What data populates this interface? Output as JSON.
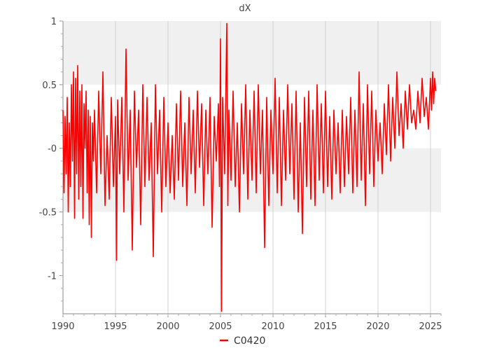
{
  "chart_data": {
    "type": "line",
    "title": "dX",
    "xlabel": "",
    "ylabel": "",
    "x_range": [
      1990,
      2026
    ],
    "ylim": [
      -1.3,
      1.0
    ],
    "x_ticks": [
      {
        "value": 1990,
        "label": "1990"
      },
      {
        "value": 1995,
        "label": "1995"
      },
      {
        "value": 2000,
        "label": "2000"
      },
      {
        "value": 2005,
        "label": "2005"
      },
      {
        "value": 2010,
        "label": "2010"
      },
      {
        "value": 2015,
        "label": "2015"
      },
      {
        "value": 2020,
        "label": "2020"
      },
      {
        "value": 2025,
        "label": "2025"
      }
    ],
    "y_ticks": [
      {
        "value": 1,
        "label": "1"
      },
      {
        "value": 0.5,
        "label": "0.5"
      },
      {
        "value": 0,
        "label": "-0"
      },
      {
        "value": -0.5,
        "label": "-0.5"
      },
      {
        "value": -1,
        "label": "-1"
      }
    ],
    "bands": [
      [
        0.5,
        1.0
      ],
      [
        -0.5,
        0.0
      ]
    ],
    "band_color": "#f0f0f0",
    "grid": true,
    "legend_position": "bottom-center",
    "series": [
      {
        "name": "C0420",
        "color": "#ff0000",
        "x": [
          1990.0,
          1990.1,
          1990.2,
          1990.3,
          1990.4,
          1990.5,
          1990.6,
          1990.7,
          1990.8,
          1990.9,
          1991.0,
          1991.1,
          1991.2,
          1991.3,
          1991.4,
          1991.5,
          1991.6,
          1991.7,
          1991.8,
          1991.9,
          1992.0,
          1992.1,
          1992.2,
          1992.3,
          1992.4,
          1992.5,
          1992.6,
          1992.7,
          1992.8,
          1992.9,
          1993.0,
          1993.2,
          1993.4,
          1993.6,
          1993.8,
          1994.0,
          1994.2,
          1994.4,
          1994.6,
          1994.8,
          1995.0,
          1995.1,
          1995.2,
          1995.4,
          1995.6,
          1995.8,
          1996.0,
          1996.2,
          1996.4,
          1996.6,
          1996.8,
          1997.0,
          1997.2,
          1997.4,
          1997.6,
          1997.8,
          1998.0,
          1998.2,
          1998.4,
          1998.6,
          1998.8,
          1999.0,
          1999.2,
          1999.4,
          1999.6,
          1999.8,
          2000.0,
          2000.2,
          2000.4,
          2000.6,
          2000.8,
          2001.0,
          2001.2,
          2001.4,
          2001.6,
          2001.8,
          2002.0,
          2002.2,
          2002.4,
          2002.6,
          2002.8,
          2003.0,
          2003.2,
          2003.4,
          2003.6,
          2003.8,
          2004.0,
          2004.2,
          2004.4,
          2004.6,
          2004.8,
          2004.9,
          2005.0,
          2005.1,
          2005.2,
          2005.4,
          2005.6,
          2005.7,
          2005.8,
          2006.0,
          2006.2,
          2006.4,
          2006.6,
          2006.8,
          2007.0,
          2007.2,
          2007.4,
          2007.6,
          2007.8,
          2008.0,
          2008.2,
          2008.4,
          2008.6,
          2008.8,
          2009.0,
          2009.2,
          2009.4,
          2009.6,
          2009.8,
          2010.0,
          2010.2,
          2010.4,
          2010.6,
          2010.8,
          2011.0,
          2011.2,
          2011.4,
          2011.6,
          2011.8,
          2012.0,
          2012.2,
          2012.4,
          2012.6,
          2012.8,
          2013.0,
          2013.2,
          2013.4,
          2013.6,
          2013.8,
          2014.0,
          2014.2,
          2014.4,
          2014.6,
          2014.8,
          2015.0,
          2015.2,
          2015.4,
          2015.6,
          2015.8,
          2016.0,
          2016.2,
          2016.4,
          2016.6,
          2016.8,
          2017.0,
          2017.2,
          2017.4,
          2017.6,
          2017.8,
          2018.0,
          2018.2,
          2018.4,
          2018.6,
          2018.8,
          2019.0,
          2019.2,
          2019.4,
          2019.6,
          2019.8,
          2020.0,
          2020.2,
          2020.4,
          2020.6,
          2020.8,
          2021.0,
          2021.2,
          2021.4,
          2021.6,
          2021.8,
          2022.0,
          2022.2,
          2022.4,
          2022.6,
          2022.8,
          2023.0,
          2023.2,
          2023.4,
          2023.6,
          2023.8,
          2024.0,
          2024.2,
          2024.4,
          2024.6,
          2024.8,
          2025.0,
          2025.1,
          2025.2,
          2025.3,
          2025.4,
          2025.5
        ],
        "y": [
          0.3,
          -0.35,
          0.25,
          -0.2,
          0.4,
          -0.5,
          0.2,
          -0.3,
          0.5,
          -0.1,
          0.6,
          -0.55,
          0.55,
          -0.2,
          0.65,
          -0.4,
          0.45,
          -0.3,
          0.5,
          -0.55,
          0.35,
          0.0,
          0.45,
          -0.35,
          0.3,
          -0.6,
          0.25,
          -0.7,
          0.2,
          -0.1,
          0.3,
          -0.35,
          0.45,
          -0.2,
          0.6,
          -0.45,
          0.1,
          -0.4,
          0.4,
          -0.3,
          0.25,
          -0.88,
          0.38,
          -0.2,
          0.4,
          -0.5,
          0.78,
          -0.25,
          0.3,
          -0.8,
          0.45,
          -0.15,
          0.3,
          -0.6,
          0.5,
          -0.3,
          0.4,
          -0.25,
          0.2,
          -0.85,
          0.5,
          -0.2,
          0.3,
          -0.5,
          0.4,
          -0.3,
          0.2,
          -0.35,
          0.1,
          -0.4,
          0.35,
          -0.25,
          0.45,
          -0.3,
          0.2,
          -0.45,
          0.4,
          -0.2,
          0.3,
          -0.35,
          0.45,
          -0.15,
          0.35,
          -0.45,
          0.3,
          -0.2,
          0.4,
          -0.62,
          0.25,
          -0.1,
          0.35,
          -0.3,
          0.86,
          -1.28,
          0.4,
          -0.2,
          0.98,
          -0.45,
          0.3,
          -0.25,
          0.45,
          -0.3,
          0.2,
          -0.5,
          0.35,
          -0.2,
          0.5,
          -0.4,
          0.3,
          -0.25,
          0.45,
          -0.35,
          0.5,
          -0.2,
          0.3,
          -0.78,
          0.4,
          -0.45,
          0.3,
          -0.2,
          0.55,
          -0.35,
          0.4,
          -0.45,
          0.3,
          -0.25,
          0.5,
          -0.2,
          0.35,
          -0.4,
          0.45,
          -0.5,
          0.2,
          -0.67,
          0.4,
          -0.3,
          0.45,
          -0.4,
          0.3,
          -0.45,
          0.5,
          -0.25,
          0.35,
          -0.35,
          0.45,
          -0.3,
          0.25,
          -0.4,
          0.3,
          -0.2,
          0.2,
          -0.35,
          0.3,
          -0.3,
          0.25,
          -0.2,
          0.4,
          -0.35,
          0.3,
          -0.3,
          0.6,
          -0.25,
          0.35,
          -0.45,
          0.5,
          -0.2,
          0.45,
          -0.3,
          0.3,
          -0.1,
          0.2,
          -0.2,
          0.35,
          -0.05,
          0.5,
          -0.1,
          0.4,
          0.0,
          0.6,
          0.1,
          0.35,
          0.0,
          0.45,
          0.15,
          0.5,
          0.2,
          0.3,
          0.15,
          0.45,
          0.2,
          0.55,
          0.25,
          0.4,
          0.15,
          0.55,
          0.3,
          0.6,
          0.35,
          0.55,
          0.45
        ]
      }
    ]
  }
}
